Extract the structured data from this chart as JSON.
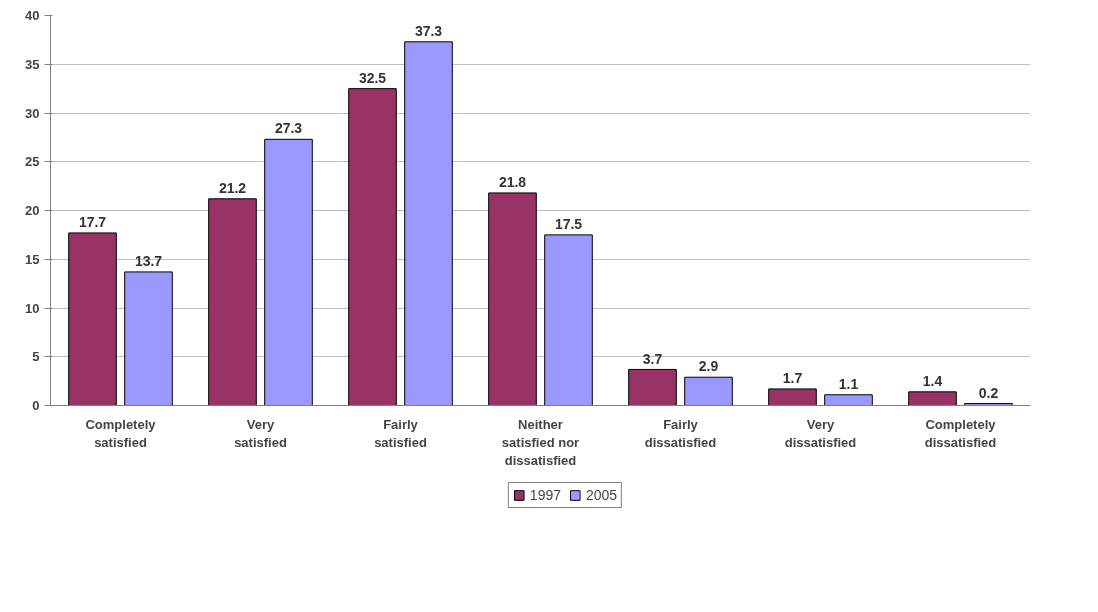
{
  "chart_data": {
    "type": "bar",
    "categories": [
      "Completely satisfied",
      "Very satisfied",
      "Fairly satisfied",
      "Neither satisfied nor dissatisfied",
      "Fairly dissatisfied",
      "Very dissatisfied",
      "Completely dissatisfied"
    ],
    "series": [
      {
        "name": "1997",
        "color": "#993366",
        "values": [
          17.7,
          21.2,
          32.5,
          21.8,
          3.7,
          1.7,
          1.4
        ]
      },
      {
        "name": "2005",
        "color": "#9999ff",
        "values": [
          13.7,
          27.3,
          37.3,
          17.5,
          2.9,
          1.1,
          0.2
        ]
      }
    ],
    "ylim": [
      0,
      40
    ],
    "yticks": [
      0,
      5,
      10,
      15,
      20,
      25,
      30,
      35,
      40
    ],
    "grid": "y",
    "legend": "bottom",
    "data_labels": true
  }
}
